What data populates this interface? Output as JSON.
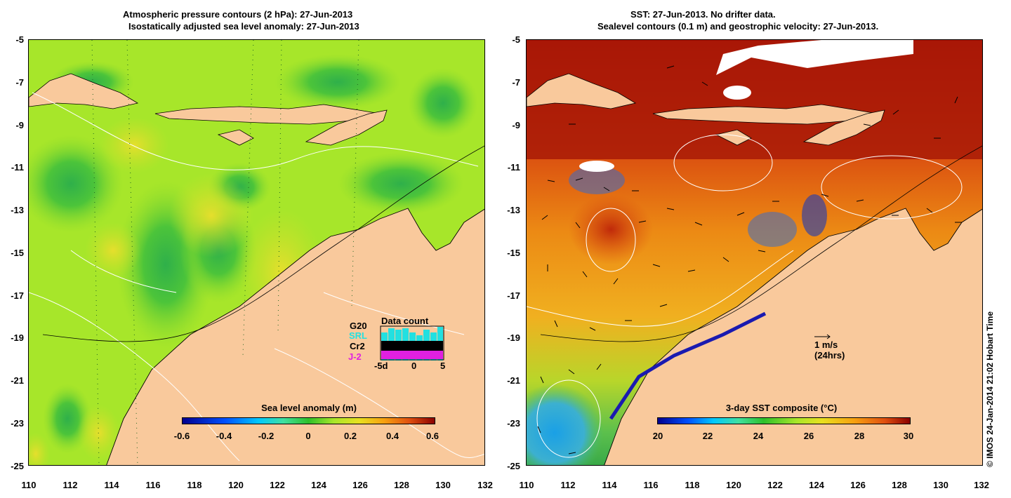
{
  "left_panel": {
    "title_line1": "Atmospheric pressure contours (2 hPa): 27-Jun-2013",
    "title_line2": "Isostatically adjusted sea level anomaly: 27-Jun-2013",
    "colorbar_title": "Sea level anomaly (m)",
    "colorbar_ticks": [
      "-0.6",
      "-0.4",
      "-0.2",
      "0",
      "0.2",
      "0.4",
      "0.6"
    ],
    "data_count": {
      "title": "Data count",
      "g20": "G20",
      "srl": "SRL",
      "cr2": "Cr2",
      "j2": "J-2",
      "axis_labels": [
        "-5d",
        "0",
        "5"
      ]
    }
  },
  "right_panel": {
    "title_line1": "SST: 27-Jun-2013. No drifter data.",
    "title_line2": "Sealevel contours (0.1 m) and geostrophic velocity: 27-Jun-2013.",
    "colorbar_title": "3-day SST composite (°C)",
    "colorbar_ticks": [
      "20",
      "22",
      "24",
      "26",
      "28",
      "30"
    ],
    "velocity_scale": "1 m/s",
    "velocity_note": "(24hrs)"
  },
  "axes": {
    "y_ticks": [
      "-5",
      "-7",
      "-9",
      "-11",
      "-13",
      "-15",
      "-17",
      "-19",
      "-21",
      "-23",
      "-25"
    ],
    "x_ticks": [
      "110",
      "112",
      "114",
      "116",
      "118",
      "120",
      "122",
      "124",
      "126",
      "128",
      "130",
      "132"
    ]
  },
  "credit": "© IMOS 24-Jan-2014 21:02 Hobart Time",
  "colors": {
    "land": "#f9c99c",
    "sla_base": "#a7e62a",
    "sst_warm": "#b81a08",
    "sst_mid": "#e88a10"
  }
}
